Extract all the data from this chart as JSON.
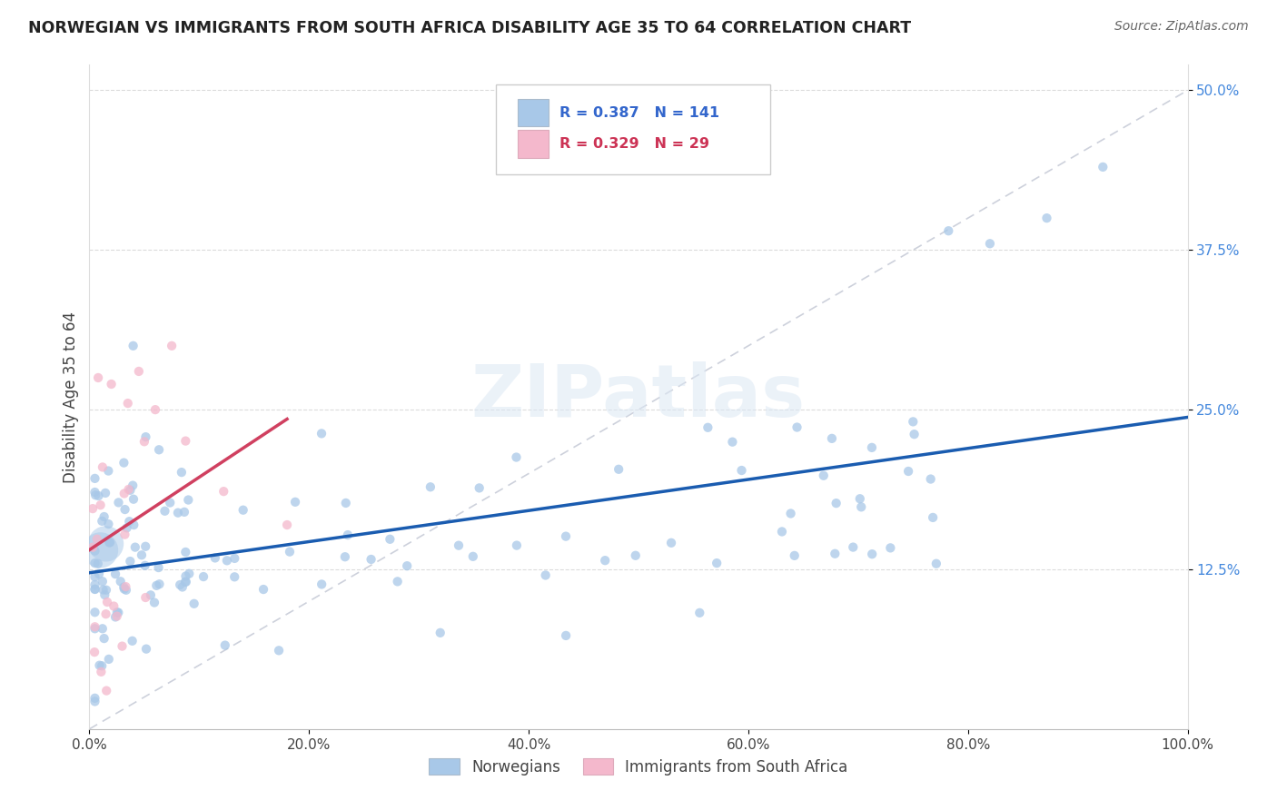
{
  "title": "NORWEGIAN VS IMMIGRANTS FROM SOUTH AFRICA DISABILITY AGE 35 TO 64 CORRELATION CHART",
  "source": "Source: ZipAtlas.com",
  "ylabel": "Disability Age 35 to 64",
  "xlim": [
    0,
    100
  ],
  "ylim": [
    0,
    52
  ],
  "ytick_vals": [
    12.5,
    25.0,
    37.5,
    50.0
  ],
  "xtick_vals": [
    0,
    20,
    40,
    60,
    80,
    100
  ],
  "norwegian_color": "#a8c8e8",
  "norwegian_edge": "#a8c8e8",
  "immigrant_color": "#f4b8cc",
  "immigrant_edge": "#f4b8cc",
  "norwegian_line_color": "#1a5cb0",
  "immigrant_line_color": "#d04060",
  "reference_line_color": "#c8ccd8",
  "R_norwegian": 0.387,
  "N_norwegian": 141,
  "R_immigrant": 0.329,
  "N_immigrant": 29,
  "watermark": "ZIPatlas",
  "legend_norwegian": "Norwegians",
  "legend_immigrant": "Immigrants from South Africa",
  "dot_size_nor": 55,
  "dot_size_imm": 55,
  "dot_alpha": 0.75
}
